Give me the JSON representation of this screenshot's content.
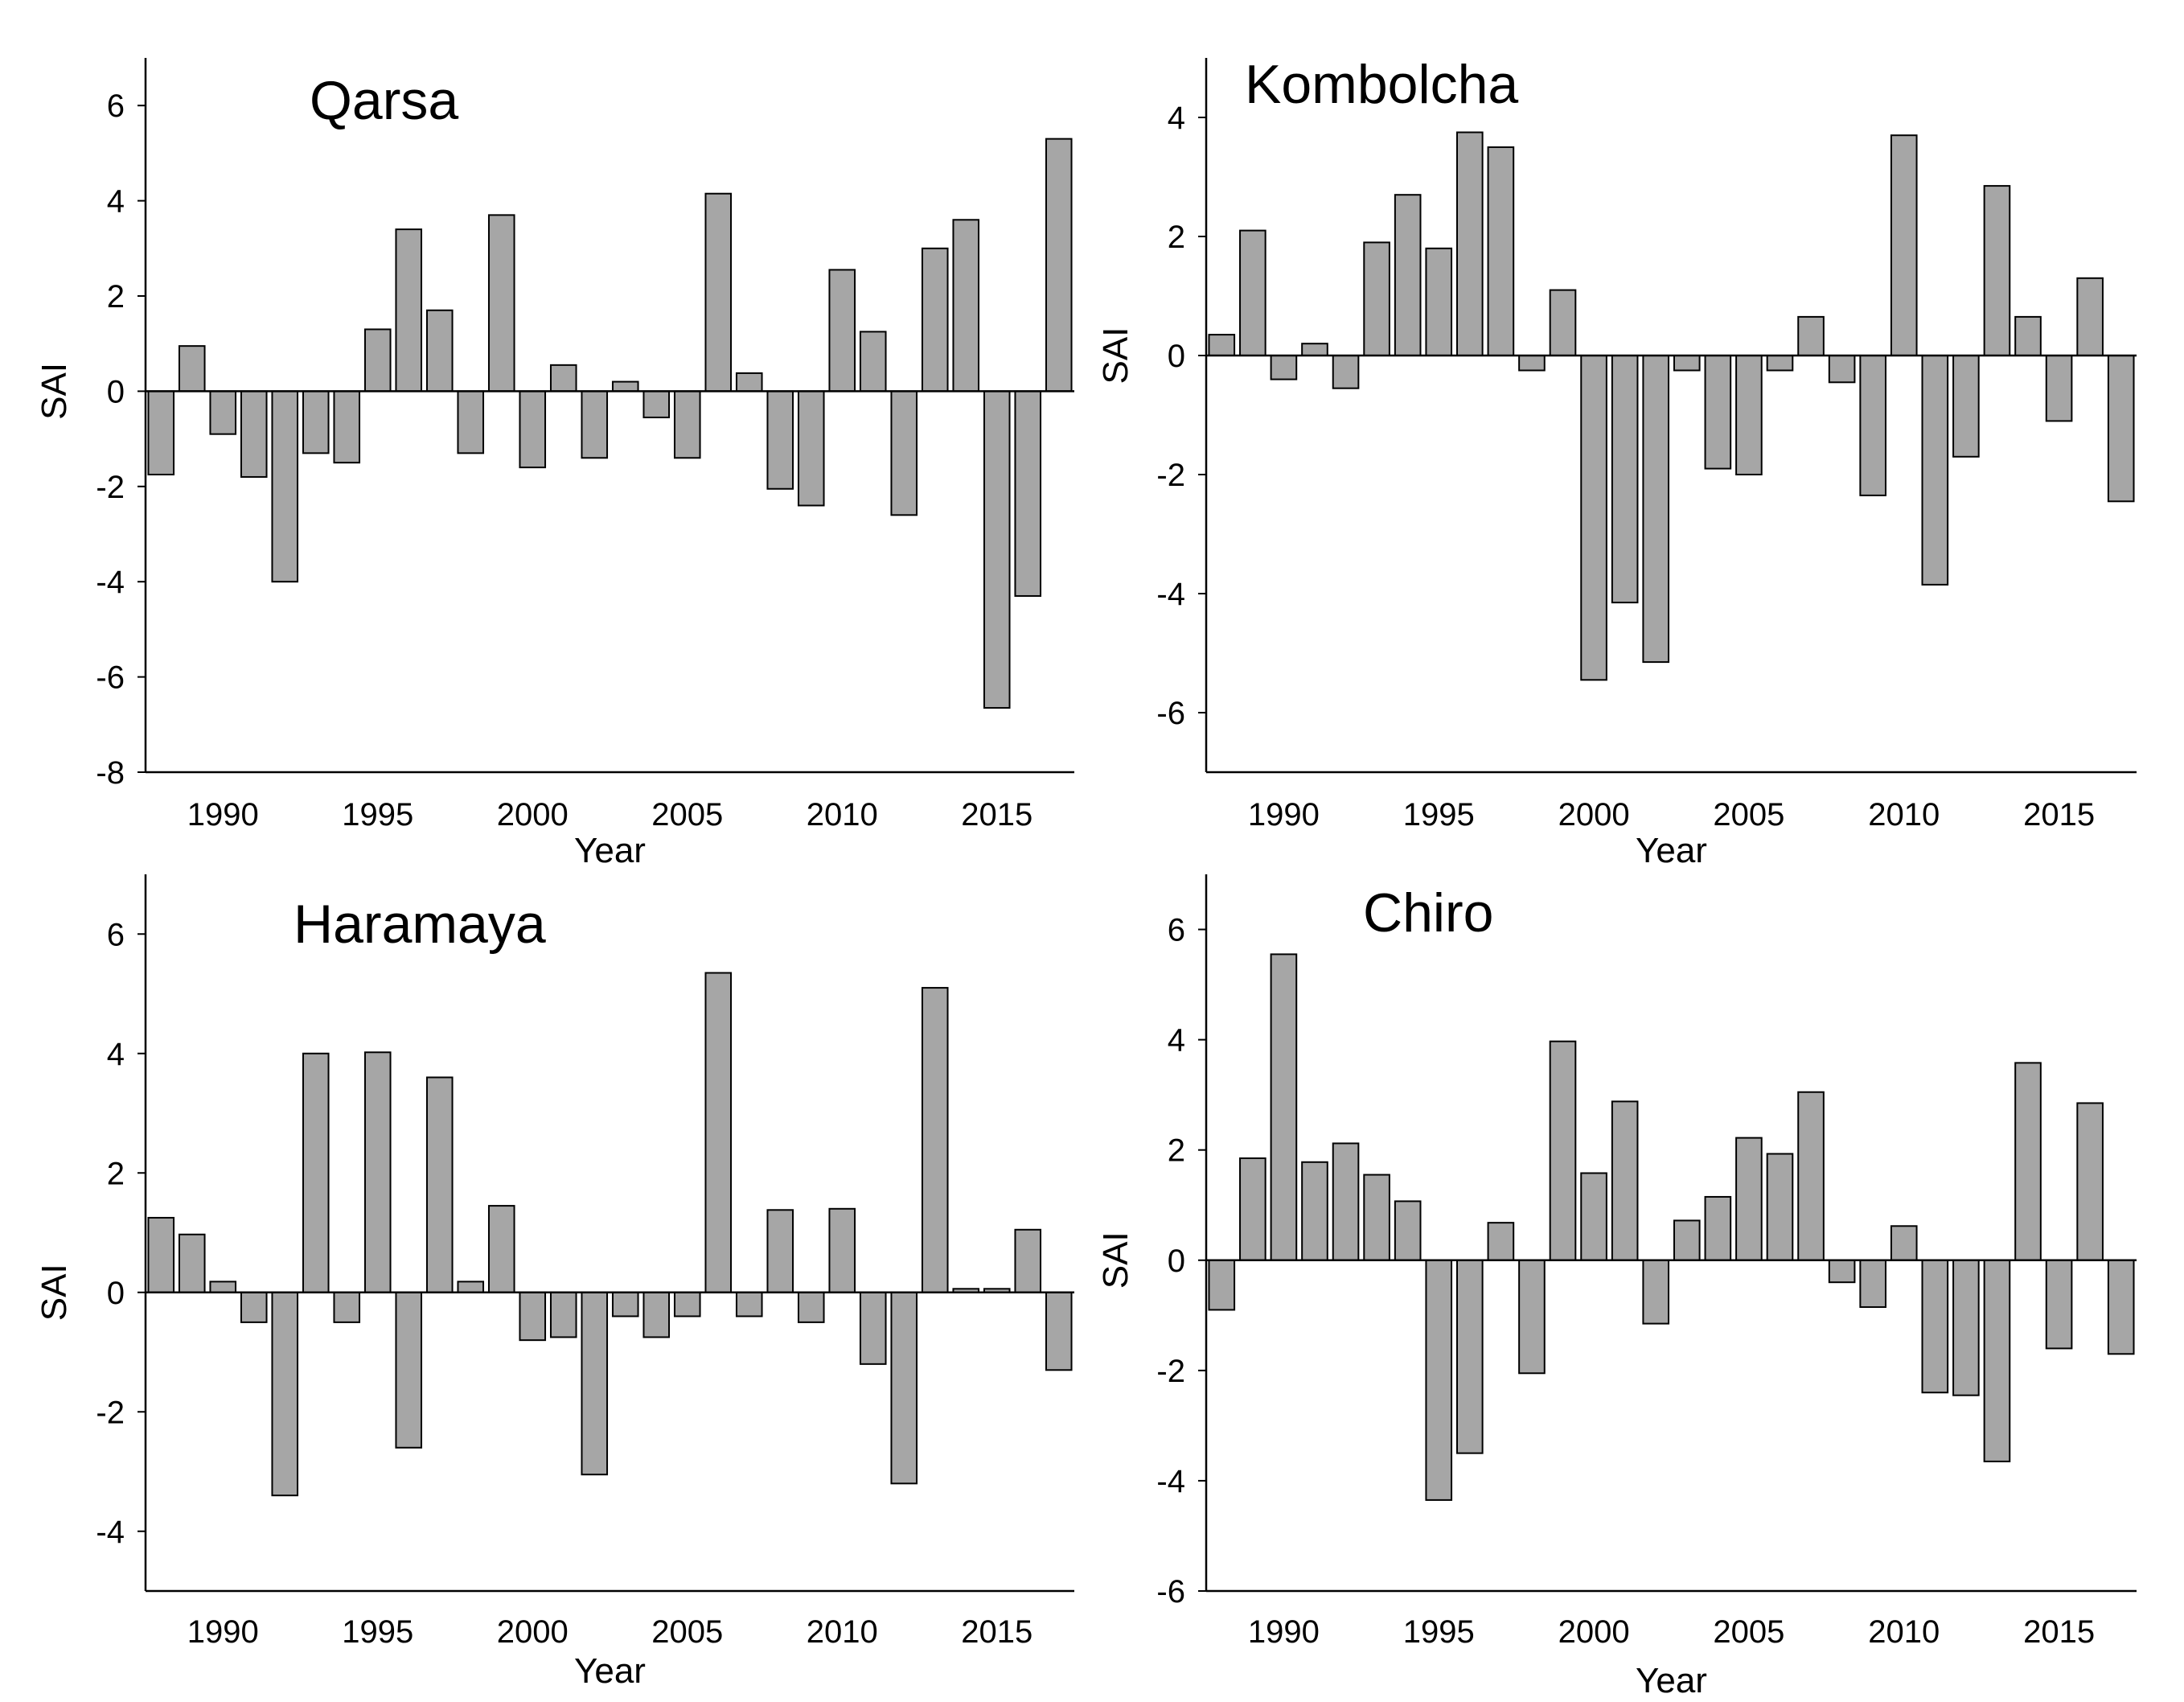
{
  "chart_data": [
    {
      "type": "bar",
      "title": "Qarsa",
      "xlabel": "Year",
      "ylabel": "SAI",
      "ylim": [
        -8,
        7
      ],
      "yticks": [
        -8,
        -6,
        -4,
        -2,
        0,
        2,
        4,
        6
      ],
      "xticks": [
        1990,
        1995,
        2000,
        2005,
        2010,
        2015
      ],
      "categories": [
        1988,
        1989,
        1990,
        1991,
        1992,
        1993,
        1994,
        1995,
        1996,
        1997,
        1998,
        1999,
        2000,
        2001,
        2002,
        2003,
        2004,
        2005,
        2006,
        2007,
        2008,
        2009,
        2010,
        2011,
        2012,
        2013,
        2014,
        2015,
        2016,
        2017
      ],
      "values": [
        -1.75,
        0.95,
        -0.9,
        -1.8,
        -4.0,
        -1.3,
        -1.5,
        1.3,
        3.4,
        1.7,
        -1.3,
        3.7,
        -1.6,
        0.55,
        -1.4,
        0.2,
        -0.55,
        -1.4,
        4.15,
        0.38,
        -2.05,
        -2.4,
        2.55,
        1.25,
        -2.6,
        3.0,
        3.6,
        -6.65,
        -4.3,
        5.3
      ]
    },
    {
      "type": "bar",
      "title": "Kombolcha",
      "xlabel": "Year",
      "ylabel": "SAI",
      "ylim": [
        -7,
        5
      ],
      "yticks": [
        -6,
        -4,
        -2,
        0,
        2,
        4
      ],
      "xticks": [
        1990,
        1995,
        2000,
        2005,
        2010,
        2015
      ],
      "categories": [
        1988,
        1989,
        1990,
        1991,
        1992,
        1993,
        1994,
        1995,
        1996,
        1997,
        1998,
        1999,
        2000,
        2001,
        2002,
        2003,
        2004,
        2005,
        2006,
        2007,
        2008,
        2009,
        2010,
        2011,
        2012,
        2013,
        2014,
        2015,
        2016,
        2017
      ],
      "values": [
        0.35,
        2.1,
        -0.4,
        0.2,
        -0.55,
        1.9,
        2.7,
        1.8,
        3.75,
        3.5,
        -0.25,
        1.1,
        -5.45,
        -4.15,
        -5.15,
        -0.25,
        -1.9,
        -2.0,
        -0.25,
        0.65,
        -0.45,
        -2.35,
        3.7,
        -3.85,
        -1.7,
        2.85,
        0.65,
        -1.1,
        1.3,
        -2.45
      ]
    },
    {
      "type": "bar",
      "title": "Haramaya",
      "xlabel": "Year",
      "ylabel": "SAI",
      "ylim": [
        -5,
        7
      ],
      "yticks": [
        -4,
        -2,
        0,
        2,
        4,
        6
      ],
      "xticks": [
        1990,
        1995,
        2000,
        2005,
        2010,
        2015
      ],
      "categories": [
        1988,
        1989,
        1990,
        1991,
        1992,
        1993,
        1994,
        1995,
        1996,
        1997,
        1998,
        1999,
        2000,
        2001,
        2002,
        2003,
        2004,
        2005,
        2006,
        2007,
        2008,
        2009,
        2010,
        2011,
        2012,
        2013,
        2014,
        2015,
        2016,
        2017
      ],
      "values": [
        1.25,
        0.97,
        0.18,
        -0.5,
        -3.4,
        4.0,
        -0.5,
        4.02,
        -2.6,
        3.6,
        0.18,
        1.45,
        -0.8,
        -0.75,
        -3.05,
        -0.4,
        -0.75,
        -0.4,
        5.35,
        -0.4,
        1.38,
        -0.5,
        1.4,
        -1.2,
        -3.2,
        5.1,
        0.06,
        0.06,
        1.05,
        -1.3
      ]
    },
    {
      "type": "bar",
      "title": "Chiro",
      "xlabel": "Year",
      "ylabel": "SAI",
      "ylim": [
        -6,
        7
      ],
      "yticks": [
        -6,
        -4,
        -2,
        0,
        2,
        4,
        6
      ],
      "xticks": [
        1990,
        1995,
        2000,
        2005,
        2010,
        2015
      ],
      "categories": [
        1988,
        1989,
        1990,
        1991,
        1992,
        1993,
        1994,
        1995,
        1996,
        1997,
        1998,
        1999,
        2000,
        2001,
        2002,
        2003,
        2004,
        2005,
        2006,
        2007,
        2008,
        2009,
        2010,
        2011,
        2012,
        2013,
        2014,
        2015,
        2016,
        2017
      ],
      "values": [
        -0.9,
        1.85,
        5.55,
        1.78,
        2.12,
        1.55,
        1.07,
        -4.35,
        -3.5,
        0.68,
        -2.05,
        3.97,
        1.58,
        2.88,
        -1.15,
        0.72,
        1.15,
        2.22,
        1.93,
        3.05,
        -0.4,
        -0.85,
        0.62,
        -2.4,
        -2.45,
        -3.65,
        3.58,
        -1.6,
        2.85,
        -1.7
      ]
    }
  ]
}
